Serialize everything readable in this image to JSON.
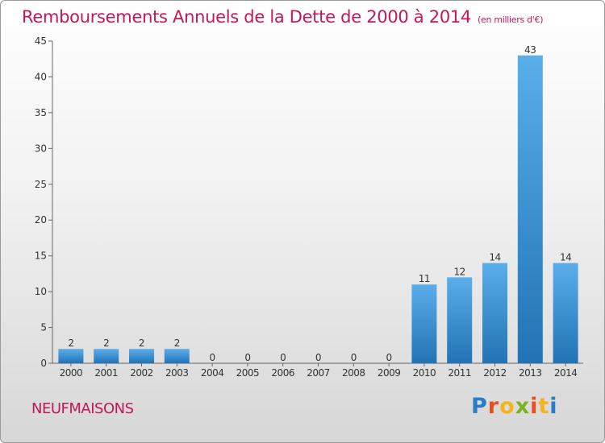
{
  "header": {
    "title": "Remboursements Annuels de la Dette de 2000 à 2014",
    "unit": "(en milliers d'€)"
  },
  "commune_name": "NEUFMAISONS",
  "logo": {
    "letters": [
      "P",
      "r",
      "o",
      "x",
      "i",
      "t",
      "i"
    ],
    "colors": [
      "#2a7bc8",
      "#e94e1b",
      "#f6b31b",
      "#7ab51d",
      "#e94e1b",
      "#f6b31b",
      "#2a7bc8"
    ]
  },
  "colors": {
    "title": "#c2185b",
    "bar_light": "#5aaeea",
    "bar_dark": "#2173b5"
  },
  "chart_data": {
    "type": "bar",
    "title": "Remboursements Annuels de la Dette de 2000 à 2014",
    "subtitle": "(en milliers d'€)",
    "categories": [
      "2000",
      "2001",
      "2002",
      "2003",
      "2004",
      "2005",
      "2006",
      "2007",
      "2008",
      "2009",
      "2010",
      "2011",
      "2012",
      "2013",
      "2014"
    ],
    "values": [
      2,
      2,
      2,
      2,
      0,
      0,
      0,
      0,
      0,
      0,
      11,
      12,
      14,
      43,
      14
    ],
    "ylim": [
      0,
      45
    ],
    "yticks": [
      0,
      5,
      10,
      15,
      20,
      25,
      30,
      35,
      40,
      45
    ],
    "grid": false,
    "xlabel": "",
    "ylabel": ""
  }
}
